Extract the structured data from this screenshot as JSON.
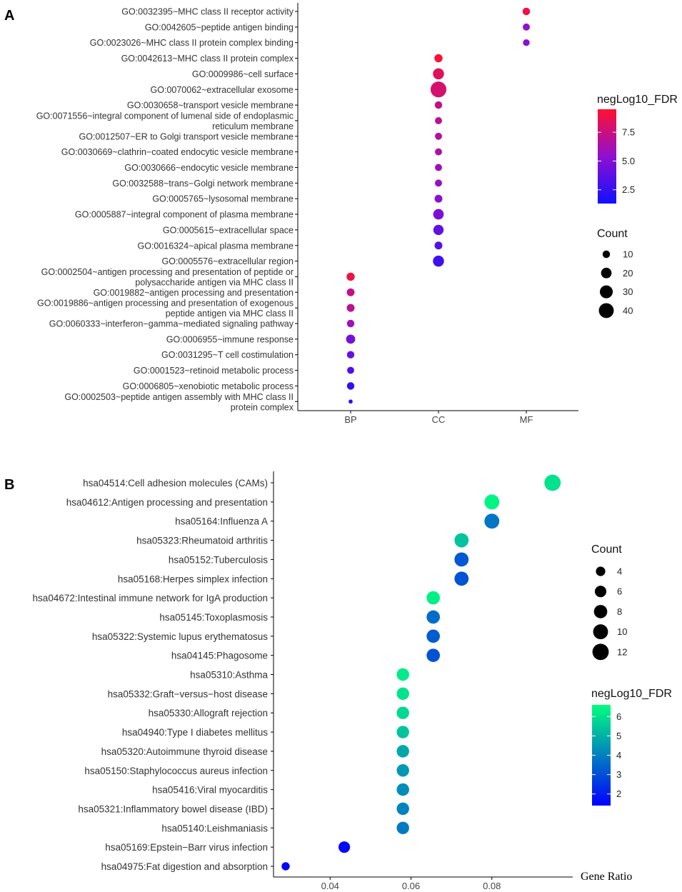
{
  "chart_data": [
    {
      "panel": "A",
      "type": "scatter",
      "xlabel": "",
      "ylabel": "",
      "categories_x": [
        "BP",
        "CC",
        "MF"
      ],
      "color_legend": {
        "title": "negLog10_FDR",
        "ticks": [
          2.5,
          5.0,
          7.5
        ],
        "tick_labels": [
          "2.5",
          "5.0",
          "7.5"
        ],
        "range": [
          1.3,
          9.5
        ],
        "low_color": "#1010ff",
        "mid_color": "#9010d0",
        "high_color": "#ff1030"
      },
      "size_legend": {
        "title": "Count",
        "values": [
          10,
          20,
          30,
          40
        ]
      },
      "points": [
        {
          "term": [
            "GO:0032395~MHC class II receptor activity"
          ],
          "category": "MF",
          "count": 10,
          "fdr": 8.9
        },
        {
          "term": [
            "GO:0042605~peptide antigen binding"
          ],
          "category": "MF",
          "count": 9,
          "fdr": 5.5
        },
        {
          "term": [
            "GO:0023026~MHC class II protein complex binding"
          ],
          "category": "MF",
          "count": 8,
          "fdr": 5.2
        },
        {
          "term": [
            "GO:0042613~MHC class II protein complex"
          ],
          "category": "CC",
          "count": 12,
          "fdr": 9.3
        },
        {
          "term": [
            "GO:0009986~cell surface"
          ],
          "category": "CC",
          "count": 22,
          "fdr": 8.4
        },
        {
          "term": [
            "GO:0070062~extracellular exosome"
          ],
          "category": "CC",
          "count": 45,
          "fdr": 7.9
        },
        {
          "term": [
            "GO:0030658~transport vesicle membrane"
          ],
          "category": "CC",
          "count": 10,
          "fdr": 7.2
        },
        {
          "term": [
            "GO:0071556~integral component of lumenal side of endoplasmic",
            "reticulum membrane"
          ],
          "category": "CC",
          "count": 9,
          "fdr": 7.0
        },
        {
          "term": [
            "GO:0012507~ER to Golgi transport vesicle membrane"
          ],
          "category": "CC",
          "count": 9,
          "fdr": 6.8
        },
        {
          "term": [
            "GO:0030669~clathrin−coated endocytic vesicle membrane"
          ],
          "category": "CC",
          "count": 9,
          "fdr": 6.5
        },
        {
          "term": [
            "GO:0030666~endocytic vesicle membrane"
          ],
          "category": "CC",
          "count": 9,
          "fdr": 5.9
        },
        {
          "term": [
            "GO:0032588~trans−Golgi network membrane"
          ],
          "category": "CC",
          "count": 9,
          "fdr": 5.7
        },
        {
          "term": [
            "GO:0005765~lysosomal membrane"
          ],
          "category": "CC",
          "count": 11,
          "fdr": 5.3
        },
        {
          "term": [
            "GO:0005887~integral component of plasma membrane"
          ],
          "category": "CC",
          "count": 20,
          "fdr": 4.8
        },
        {
          "term": [
            "GO:0005615~extracellular space"
          ],
          "category": "CC",
          "count": 19,
          "fdr": 3.9
        },
        {
          "term": [
            "GO:0016324~apical plasma membrane"
          ],
          "category": "CC",
          "count": 11,
          "fdr": 3.5
        },
        {
          "term": [
            "GO:0005576~extracellular region"
          ],
          "category": "CC",
          "count": 22,
          "fdr": 2.8
        },
        {
          "term": [
            "GO:0002504~antigen processing and presentation of peptide or",
            "polysaccharide antigen via MHC class II"
          ],
          "category": "BP",
          "count": 12,
          "fdr": 9.0
        },
        {
          "term": [
            "GO:0019882~antigen processing and presentation"
          ],
          "category": "BP",
          "count": 11,
          "fdr": 7.2
        },
        {
          "term": [
            "GO:0019886~antigen processing and presentation of exogenous",
            "peptide antigen via MHC class II"
          ],
          "category": "BP",
          "count": 11,
          "fdr": 6.9
        },
        {
          "term": [
            "GO:0060333~interferon−gamma−mediated signaling pathway"
          ],
          "category": "BP",
          "count": 10,
          "fdr": 6.0
        },
        {
          "term": [
            "GO:0006955~immune response"
          ],
          "category": "BP",
          "count": 15,
          "fdr": 4.5
        },
        {
          "term": [
            "GO:0031295~T cell costimulation"
          ],
          "category": "BP",
          "count": 10,
          "fdr": 4.0
        },
        {
          "term": [
            "GO:0001523~retinoid metabolic process"
          ],
          "category": "BP",
          "count": 9,
          "fdr": 3.3
        },
        {
          "term": [
            "GO:0006805~xenobiotic metabolic process"
          ],
          "category": "BP",
          "count": 10,
          "fdr": 2.3
        },
        {
          "term": [
            "GO:0002503~peptide antigen assembly with MHC class II",
            "protein complex"
          ],
          "category": "BP",
          "count": 3,
          "fdr": 1.8
        }
      ]
    },
    {
      "panel": "B",
      "type": "scatter",
      "xlabel": "Gene Ratio",
      "ylabel": "",
      "xlim": [
        0.026,
        0.1
      ],
      "xticks": [
        0.04,
        0.06,
        0.08
      ],
      "xtick_labels": [
        "0.04",
        "0.06",
        "0.08"
      ],
      "color_legend": {
        "title": "negLog10_FDR",
        "ticks": [
          2,
          3,
          4,
          5,
          6
        ],
        "tick_labels": [
          "2",
          "3",
          "4",
          "5",
          "6"
        ],
        "range": [
          1.4,
          6.6
        ],
        "low_color": "#0000ff",
        "high_color": "#00ff7f"
      },
      "size_legend": {
        "title": "Count",
        "values": [
          4,
          6,
          8,
          10,
          12
        ]
      },
      "points": [
        {
          "term": "hsa04514:Cell adhesion molecules (CAMs)",
          "x": 0.095,
          "count": 12,
          "fdr": 6.0
        },
        {
          "term": "hsa04612:Antigen processing and presentation",
          "x": 0.08,
          "count": 10,
          "fdr": 6.4
        },
        {
          "term": "hsa05164:Influenza A",
          "x": 0.08,
          "count": 10,
          "fdr": 3.8
        },
        {
          "term": "hsa05323:Rheumatoid arthritis",
          "x": 0.0725,
          "count": 9,
          "fdr": 5.4
        },
        {
          "term": "hsa05152:Tuberculosis",
          "x": 0.0725,
          "count": 9,
          "fdr": 3.2
        },
        {
          "term": "hsa05168:Herpes simplex infection",
          "x": 0.0725,
          "count": 9,
          "fdr": 3.1
        },
        {
          "term": "hsa04672:Intestinal immune network for IgA production",
          "x": 0.0655,
          "count": 8,
          "fdr": 6.3
        },
        {
          "term": "hsa05145:Toxoplasmosis",
          "x": 0.0655,
          "count": 8,
          "fdr": 3.6
        },
        {
          "term": "hsa05322:Systemic lupus erythematosus",
          "x": 0.0655,
          "count": 8,
          "fdr": 3.3
        },
        {
          "term": "hsa04145:Phagosome",
          "x": 0.0655,
          "count": 8,
          "fdr": 3.1
        },
        {
          "term": "hsa05310:Asthma",
          "x": 0.058,
          "count": 7,
          "fdr": 6.2
        },
        {
          "term": "hsa05332:Graft−versus−host disease",
          "x": 0.058,
          "count": 7,
          "fdr": 6.0
        },
        {
          "term": "hsa05330:Allograft rejection",
          "x": 0.058,
          "count": 7,
          "fdr": 5.8
        },
        {
          "term": "hsa04940:Type I diabetes mellitus",
          "x": 0.058,
          "count": 7,
          "fdr": 5.4
        },
        {
          "term": "hsa05320:Autoimmune thyroid disease",
          "x": 0.058,
          "count": 7,
          "fdr": 4.8
        },
        {
          "term": "hsa05150:Staphylococcus aureus infection",
          "x": 0.058,
          "count": 7,
          "fdr": 4.5
        },
        {
          "term": "hsa05416:Viral myocarditis",
          "x": 0.058,
          "count": 7,
          "fdr": 4.3
        },
        {
          "term": "hsa05321:Inflammatory bowel disease (IBD)",
          "x": 0.058,
          "count": 7,
          "fdr": 4.1
        },
        {
          "term": "hsa05140:Leishmaniasis",
          "x": 0.058,
          "count": 7,
          "fdr": 3.9
        },
        {
          "term": "hsa05169:Epstein−Barr virus infection",
          "x": 0.0435,
          "count": 6,
          "fdr": 1.6
        },
        {
          "term": "hsa04975:Fat digestion and absorption",
          "x": 0.029,
          "count": 3,
          "fdr": 1.5
        }
      ]
    }
  ],
  "panels": {
    "a_label": "A",
    "b_label": "B"
  }
}
